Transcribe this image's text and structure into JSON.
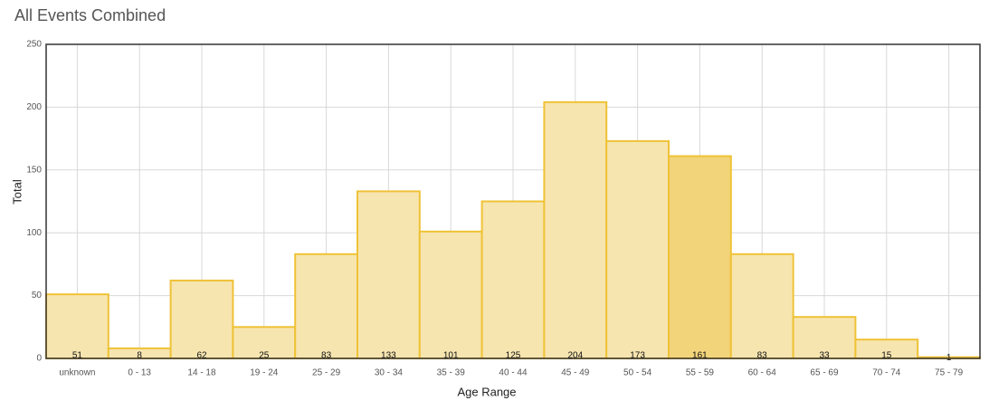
{
  "chart_data": {
    "type": "bar",
    "title": "All Events Combined",
    "x_label": "Age Range",
    "y_label": "Total",
    "categories": [
      "unknown",
      "0 - 13",
      "14 - 18",
      "19 - 24",
      "25 - 29",
      "30 - 34",
      "35 - 39",
      "40 - 44",
      "45 - 49",
      "50 - 54",
      "55 - 59",
      "60 - 64",
      "65 - 69",
      "70 - 74",
      "75 - 79"
    ],
    "values": [
      51,
      8,
      62,
      25,
      83,
      133,
      101,
      125,
      204,
      173,
      161,
      83,
      33,
      15,
      1
    ],
    "colors": [
      "#f7e5b0",
      "#f7e5b0",
      "#f7e5b0",
      "#f7e5b0",
      "#f7e5b0",
      "#f7e5b0",
      "#f7e5b0",
      "#f7e5b0",
      "#f7e5b0",
      "#f7e5b0",
      "#f2d47a",
      "#f7e5b0",
      "#f7e5b0",
      "#f7e5b0",
      "#f7e5b0"
    ],
    "edge_color": "#efc236",
    "ylim": [
      0,
      250
    ],
    "yticks": [
      0,
      50,
      100,
      150,
      200,
      250
    ],
    "grid": true
  }
}
